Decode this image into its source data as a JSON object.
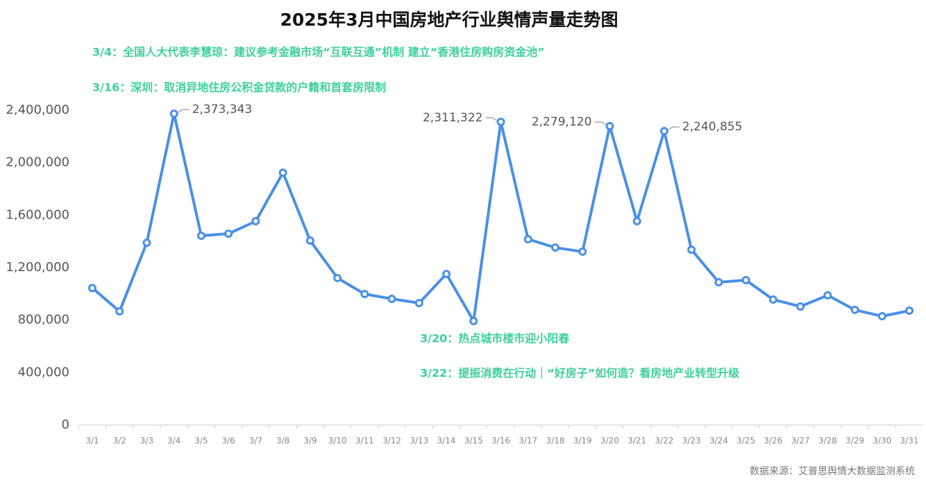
{
  "chart_data": {
    "type": "line",
    "title": "2025年3月中国房地产行业舆情声量走势图",
    "annotations": [
      "3/4：全国人大代表李慧琼：建议参考金融市场“互联互通”机制 建立“香港住房购房资金池”",
      "3/16：深圳：取消异地住房公积金贷款的户籍和首套房限制",
      "3/20：热点城市楼市迎小阳春",
      "3/22：提振消费在行动｜“好房子”如何造？看房地产业转型升级"
    ],
    "source": "数据来源：艾普思舆情大数据监测系统",
    "categories": [
      "3/1",
      "3/2",
      "3/3",
      "3/4",
      "3/5",
      "3/6",
      "3/7",
      "3/8",
      "3/9",
      "3/10",
      "3/11",
      "3/12",
      "3/13",
      "3/14",
      "3/15",
      "3/16",
      "3/17",
      "3/18",
      "3/19",
      "3/20",
      "3/21",
      "3/22",
      "3/23",
      "3/24",
      "3/25",
      "3/26",
      "3/27",
      "3/28",
      "3/29",
      "3/30",
      "3/31"
    ],
    "series": [
      {
        "color": "#4a8fe8",
        "values": [
          1045000,
          867000,
          1390000,
          2373343,
          1443000,
          1459000,
          1554000,
          1924000,
          1406000,
          1121000,
          999000,
          962000,
          930000,
          1152000,
          793000,
          2311322,
          1417000,
          1353000,
          1322000,
          2279120,
          1554000,
          2240855,
          1337000,
          1089000,
          1105000,
          957000,
          904000,
          989000,
          878000,
          830000,
          872000
        ],
        "value_labels": [
          null,
          null,
          null,
          "2,373,343",
          null,
          null,
          null,
          null,
          null,
          null,
          null,
          null,
          null,
          null,
          null,
          "2,311,322",
          null,
          null,
          null,
          "2,279,120",
          null,
          "2,240,855",
          null,
          null,
          null,
          null,
          null,
          null,
          null,
          null,
          null
        ]
      }
    ],
    "ylim": [
      0,
      2400000
    ],
    "yticks": [
      0,
      {
        "value": 400000,
        "label": "400,000"
      },
      {
        "value": 800000,
        "label": "800,000"
      },
      {
        "value": 1200000,
        "label": "1,200,000"
      },
      {
        "value": 1600000,
        "label": "1,600,000"
      },
      {
        "value": 2000000,
        "label": "2,000,000"
      },
      {
        "value": 2400000,
        "label": "2,400,000"
      }
    ],
    "grid": false
  }
}
